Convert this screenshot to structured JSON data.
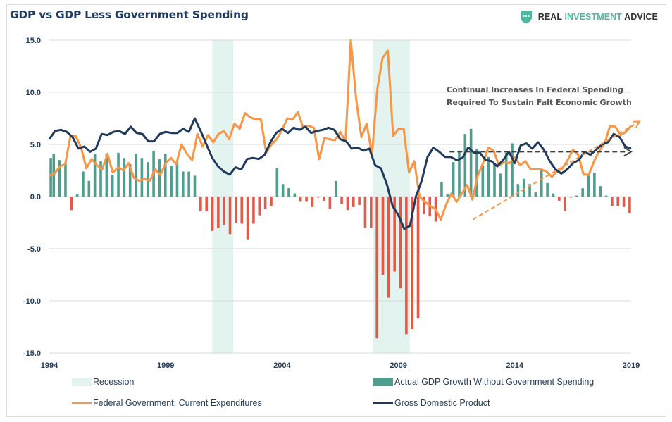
{
  "header": {
    "title": "GDP vs GDP Less Government Spending",
    "brand_left": "REAL ",
    "brand_accent": "INVESTMENT",
    "brand_right": " ADVICE",
    "brand_icon": "shield-chat-icon"
  },
  "colors": {
    "gdp_line": "#1f3a5c",
    "federal_line": "#f79646",
    "bar_positive": "#4e9e8e",
    "bar_negative": "#e05a4a",
    "recession": "#e3f3f0",
    "grid": "#d9d9d9",
    "annotation_flat_arrow": "#404040",
    "annotation_trend_arrow": "#f79646"
  },
  "chart_data": {
    "type": "bar+line",
    "title": "GDP vs GDP Less Government Spending",
    "xlabel": "",
    "ylabel": "",
    "ylim": [
      -15,
      15
    ],
    "xlim": [
      1994,
      2019
    ],
    "yticks": [
      "15.0",
      "10.0",
      "5.0",
      "0.0",
      "-5.0",
      "-10.0",
      "-15.0"
    ],
    "ytick_values": [
      15,
      10,
      5,
      0,
      -5,
      -10,
      -15
    ],
    "xticks": [
      "1994",
      "1999",
      "2004",
      "2009",
      "2014",
      "2019"
    ],
    "xtick_values": [
      1994,
      1999,
      2004,
      2009,
      2014,
      2019
    ],
    "grid": true,
    "legend_position": "bottom",
    "legend": [
      {
        "label": "Recession",
        "kind": "area"
      },
      {
        "label": "Actual GDP Growth Without Government Spending",
        "kind": "bar"
      },
      {
        "label": "Federal Government: Current Expenditures",
        "kind": "line"
      },
      {
        "label": "Gross Domestic Product",
        "kind": "line"
      }
    ],
    "recessions": [
      [
        2001.0,
        2001.9
      ],
      [
        2007.9,
        2009.5
      ]
    ],
    "quarter_start": 1994.0,
    "quarter_step": 0.25,
    "series": [
      {
        "name": "Actual GDP Growth Without Government Spending",
        "type": "bar",
        "values": [
          3.7,
          4.1,
          0,
          3.5,
          0,
          3.2,
          0,
          -1.3,
          0,
          0.2,
          0,
          2.4,
          0,
          1.5,
          0,
          4.1,
          0,
          3.4,
          0,
          4.1,
          0,
          2.1,
          0,
          4.2,
          0,
          3.7,
          0,
          3.1,
          0,
          4.1,
          0,
          3.7,
          0,
          3.3,
          0,
          4.4,
          0,
          3.6,
          0,
          4.1,
          0,
          2.9,
          0,
          3.3,
          0,
          2.4,
          0,
          2.4,
          0,
          2.0,
          0,
          -1.4,
          0,
          -1.4,
          0,
          -3.3,
          0,
          -3.0,
          0,
          -2.7,
          0,
          -3.6,
          0,
          -2.5,
          0,
          -2.6,
          0,
          -4.1,
          0,
          -2.6,
          0,
          -1.8,
          0,
          -1.2,
          0,
          -0.9,
          0,
          2.7,
          0,
          1.2,
          0,
          0.8,
          0,
          0.3,
          0,
          -0.5,
          0,
          -0.5,
          0,
          -1.0,
          0,
          -0.1,
          0,
          -0.4,
          0,
          -1.2,
          0,
          1.5,
          0,
          -0.7,
          0,
          -1.3,
          0,
          -1.0,
          0,
          -0.8,
          0,
          -3.0,
          0,
          -3.0,
          0,
          -13.6,
          0,
          -7.5,
          0,
          -9.7,
          0,
          -7.2,
          0,
          -8.8,
          0,
          -13.2,
          0,
          -12.7,
          0,
          -11.7,
          0,
          -1.7,
          0,
          -1.9,
          0,
          -2.4,
          0,
          1.4,
          0,
          0.2,
          0,
          3.3,
          0,
          4.4,
          0,
          6.0,
          0,
          6.5,
          0,
          4.6,
          0,
          3.0,
          0,
          3.8,
          0,
          3.1,
          0,
          2.2,
          0,
          4.2,
          0,
          5.1,
          0,
          1.2,
          0,
          1.7,
          0,
          1.2,
          0,
          0.4,
          0,
          2.5,
          0,
          1.3,
          0,
          0.3,
          0,
          -0.4,
          0,
          -1.4,
          0,
          -0.1,
          0,
          0.1,
          0,
          0.8,
          0,
          2.0,
          0,
          2.3,
          0,
          1.0,
          0,
          0.1,
          0,
          -0.9,
          0,
          -0.9,
          0,
          -1.0,
          0,
          -1.6
        ]
      },
      {
        "name": "Federal Government: Current Expenditures",
        "type": "line",
        "values": [
          2.0,
          2.2,
          2.9,
          3.1,
          5.8,
          5.8,
          4.7,
          2.7,
          3.6,
          3.0,
          2.6,
          4.1,
          2.3,
          2.8,
          2.5,
          3.2,
          1.8,
          1.5,
          1.7,
          1.5,
          2.6,
          2.1,
          3.2,
          3.7,
          3.1,
          5.0,
          4.1,
          3.5,
          6.0,
          4.8,
          5.9,
          5.2,
          6.0,
          6.3,
          5.5,
          7.0,
          6.5,
          8.0,
          7.6,
          7.4,
          7.4,
          4.2,
          5.0,
          5.5,
          6.4,
          7.5,
          7.4,
          8.1,
          6.6,
          6.8,
          6.6,
          3.6,
          5.6,
          5.5,
          5.4,
          6.2,
          5.3,
          15.0,
          9.4,
          5.7,
          7.0,
          4.0,
          10.3,
          13.3,
          14.0,
          5.8,
          6.5,
          6.5,
          2.3,
          3.4,
          0.0,
          -0.5,
          -0.9,
          -1.2,
          -2.2,
          -0.8,
          0.3,
          -0.5,
          0.3,
          1.1,
          -0.3,
          2.0,
          3.2,
          4.7,
          4.4,
          3.0,
          3.3,
          3.2,
          3.8,
          3.0,
          3.4,
          2.6,
          2.6,
          2.6,
          2.4,
          1.9,
          2.4,
          2.7,
          3.5,
          4.5,
          4.0,
          2.1,
          2.1,
          3.4,
          4.4,
          5.1,
          6.8,
          6.7,
          5.9,
          6.2,
          6.8
        ]
      },
      {
        "name": "Gross Domestic Product",
        "type": "line",
        "values": [
          5.5,
          6.3,
          6.4,
          6.2,
          5.7,
          4.6,
          4.8,
          4.3,
          4.6,
          6.0,
          5.9,
          6.2,
          6.3,
          6.0,
          6.7,
          6.1,
          6.0,
          5.3,
          5.3,
          6.0,
          6.2,
          6.1,
          6.1,
          6.5,
          6.2,
          7.5,
          6.3,
          5.0,
          3.7,
          2.9,
          2.4,
          2.1,
          2.8,
          2.6,
          3.6,
          3.7,
          3.6,
          4.0,
          5.2,
          6.1,
          6.5,
          6.1,
          6.6,
          6.4,
          6.7,
          6.1,
          6.3,
          6.4,
          6.6,
          6.4,
          5.5,
          5.3,
          4.6,
          4.7,
          4.4,
          4.6,
          3.0,
          2.7,
          1.2,
          -0.9,
          -1.8,
          -3.1,
          -2.8,
          0.0,
          1.5,
          3.8,
          4.7,
          4.3,
          3.8,
          3.8,
          3.5,
          3.7,
          4.7,
          4.2,
          4.2,
          3.5,
          3.4,
          2.9,
          3.5,
          4.3,
          3.2,
          4.9,
          5.1,
          4.6,
          5.2,
          4.5,
          3.4,
          2.6,
          2.2,
          2.6,
          3.2,
          3.5,
          4.3,
          4.0,
          4.5,
          5.0,
          5.2,
          6.0,
          5.7,
          4.8,
          4.6
        ]
      }
    ],
    "annotations": [
      {
        "text": "Continual Increases In Federal Spending",
        "line": 1
      },
      {
        "text": "Required To Sustain Falt Economic Growth",
        "line": 2
      }
    ],
    "flat_arrow": {
      "from": [
        2011.2,
        4.3
      ],
      "to": [
        2019.0,
        4.3
      ],
      "style": "dashed"
    },
    "trend_arrow": {
      "from": [
        2012.2,
        -2.2
      ],
      "to": [
        2019.0,
        7.2
      ],
      "style": "dashed"
    }
  }
}
